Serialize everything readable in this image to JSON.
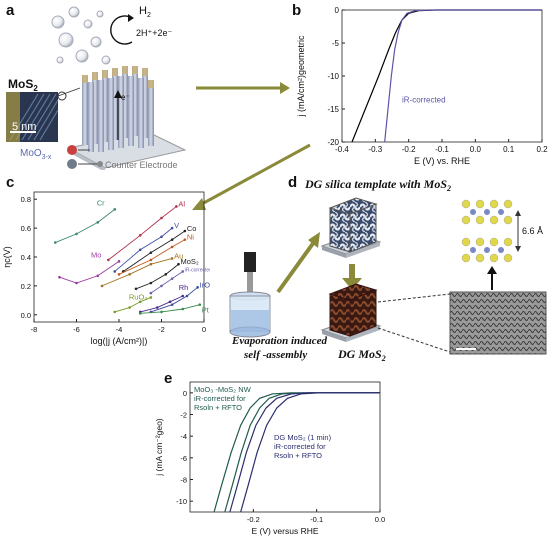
{
  "panels": {
    "a": {
      "letter": "a",
      "h2_label": "H",
      "h2_sub": "2",
      "reaction_label": "2H⁺+2e⁻",
      "mos2_label": "MoS",
      "mos2_sub": "2",
      "scale_label": "5 nm",
      "moo3_label": "MoO",
      "moo3_sub": "3-x",
      "electron_label": "e⁻",
      "minus_label": "⊖",
      "plus_label": "⊕",
      "counter_label": "Counter Electrode"
    },
    "b": {
      "letter": "b",
      "annotation": "iR-corrected"
    },
    "c": {
      "letter": "c"
    },
    "d": {
      "letter": "d",
      "title": "DG silica template with MoS",
      "title_sub": "2",
      "spacing_label": "6.6 Å",
      "self_assembly_line1": "Evaporation induced",
      "self_assembly_line2": "self -assembly",
      "dg_label": "DG MoS",
      "dg_sub": "2"
    },
    "e": {
      "letter": "e"
    }
  },
  "colors": {
    "arrow": "#8a8a3a",
    "navy": "#2b2d6e",
    "purple": "#6e5fb0",
    "teal": "#1f5a4f"
  },
  "chart_data": [
    {
      "panel": "b",
      "type": "line",
      "xlabel": "E (V) vs. RHE",
      "ylabel": "j (mA/cm²)geometric",
      "xlim": [
        -0.4,
        0.2
      ],
      "ylim": [
        -20,
        0
      ],
      "xticks": [
        "-0.4",
        "-0.3",
        "-0.2",
        "-0.1",
        "0.0",
        "0.1",
        "0.2"
      ],
      "yticks": [
        "0",
        "-5",
        "-10",
        "-15",
        "-20"
      ],
      "series": [
        {
          "color": "#000000",
          "x": [
            -0.37,
            -0.33,
            -0.29,
            -0.26,
            -0.24,
            -0.22,
            -0.2,
            -0.17,
            -0.12,
            0.2
          ],
          "y": [
            -20,
            -15,
            -10,
            -6,
            -3.5,
            -1.5,
            -0.5,
            -0.1,
            0,
            0
          ]
        },
        {
          "name": "iR-corrected",
          "color": "#5b54a8",
          "x": [
            -0.272,
            -0.262,
            -0.252,
            -0.242,
            -0.232,
            -0.22,
            -0.205,
            -0.18,
            -0.14,
            0.2
          ],
          "y": [
            -20,
            -15,
            -10,
            -6,
            -3.5,
            -1.5,
            -0.5,
            -0.1,
            0,
            0
          ]
        }
      ]
    },
    {
      "panel": "c",
      "type": "scatter",
      "xlabel": "log(|j (A/cm²)|)",
      "ylabel": "ηc(V)",
      "xlim": [
        -8,
        0
      ],
      "ylim": [
        -0.05,
        0.85
      ],
      "xticks": [
        "-8",
        "-6",
        "-4",
        "-2",
        "0"
      ],
      "yticks": [
        "0.0",
        "0.2",
        "0.4",
        "0.6",
        "0.8"
      ],
      "series": [
        {
          "name": "Cr",
          "color": "#3a8a6a",
          "x": [
            -7,
            -6,
            -5,
            -4.2
          ],
          "y": [
            0.5,
            0.56,
            0.64,
            0.73
          ]
        },
        {
          "name": "Al",
          "color": "#b0304a",
          "x": [
            -4.5,
            -3,
            -2,
            -1.3
          ],
          "y": [
            0.38,
            0.55,
            0.67,
            0.75
          ]
        },
        {
          "name": "Mo",
          "color": "#9a3aa0",
          "x": [
            -6.8,
            -6,
            -5,
            -4
          ],
          "y": [
            0.26,
            0.22,
            0.27,
            0.37
          ]
        },
        {
          "name": "V",
          "color": "#4050a0",
          "x": [
            -4.2,
            -3,
            -2,
            -1.5
          ],
          "y": [
            0.3,
            0.45,
            0.54,
            0.6
          ]
        },
        {
          "name": "Co",
          "color": "#222222",
          "x": [
            -3.8,
            -2.5,
            -1.5,
            -0.9
          ],
          "y": [
            0.3,
            0.43,
            0.52,
            0.58
          ]
        },
        {
          "name": "Ni",
          "color": "#c05a20",
          "x": [
            -4,
            -2.5,
            -1.5,
            -0.9
          ],
          "y": [
            0.28,
            0.38,
            0.47,
            0.52
          ]
        },
        {
          "name": "Au",
          "color": "#a07020",
          "x": [
            -4.8,
            -3.5,
            -2.5,
            -1.5
          ],
          "y": [
            0.2,
            0.28,
            0.35,
            0.39
          ]
        },
        {
          "name": "MoS2",
          "color": "#222222",
          "x": [
            -3.2,
            -2.5,
            -1.8,
            -1.2
          ],
          "y": [
            0.18,
            0.22,
            0.28,
            0.35
          ]
        },
        {
          "name": "iR-corrected",
          "color": "#6a64b0",
          "x": [
            -2.5,
            -2,
            -1.5,
            -1
          ],
          "y": [
            0.15,
            0.2,
            0.25,
            0.3
          ]
        },
        {
          "name": "RuO2",
          "color": "#7a9a2a",
          "x": [
            -4.2,
            -3.5,
            -3,
            -2.5
          ],
          "y": [
            0.02,
            0.05,
            0.09,
            0.12
          ]
        },
        {
          "name": "Rh",
          "color": "#4a2a8a",
          "x": [
            -3,
            -2.2,
            -1.6,
            -1
          ],
          "y": [
            0.02,
            0.05,
            0.09,
            0.13
          ]
        },
        {
          "name": "IrO2",
          "color": "#3a4aa0",
          "x": [
            -2.5,
            -1.5,
            -0.8,
            -0.3
          ],
          "y": [
            0.02,
            0.07,
            0.13,
            0.19
          ]
        },
        {
          "name": "Pt",
          "color": "#3a8a4a",
          "x": [
            -3,
            -2,
            -1,
            -0.2
          ],
          "y": [
            0.01,
            0.02,
            0.04,
            0.07
          ]
        }
      ]
    },
    {
      "panel": "e",
      "type": "line",
      "xlabel": "E (V) versus RHE",
      "ylabel": "j (mA cm⁻²geo)",
      "xlim": [
        -0.3,
        0.0
      ],
      "ylim": [
        -11,
        1
      ],
      "xticks": [
        "-0.2",
        "-0.1",
        "0.0"
      ],
      "yticks": [
        "0",
        "-2",
        "-4",
        "-6",
        "-8",
        "-10"
      ],
      "annotations": [
        {
          "lines": [
            "MoO₃ -MoS₂ NW",
            "iR-corrected for",
            "Rsoln + RFTO"
          ]
        },
        {
          "lines": [
            "DG MoS₂ (1 min)",
            "iR-corrected for",
            "Rsoln + RFTO"
          ]
        }
      ],
      "series": [
        {
          "color": "#1f5a4f",
          "x": [
            -0.262,
            -0.25,
            -0.235,
            -0.22,
            -0.205,
            -0.19,
            -0.17,
            -0.14,
            0.0
          ],
          "y": [
            -11,
            -8.5,
            -5.5,
            -3,
            -1.4,
            -0.5,
            -0.1,
            0,
            0
          ]
        },
        {
          "color": "#1f5a4f",
          "x": [
            -0.245,
            -0.233,
            -0.219,
            -0.205,
            -0.19,
            -0.175,
            -0.155,
            -0.12,
            0.0
          ],
          "y": [
            -11,
            -8.5,
            -5.5,
            -3,
            -1.4,
            -0.5,
            -0.1,
            0,
            0
          ]
        },
        {
          "color": "#2b2d6e",
          "x": [
            -0.237,
            -0.225,
            -0.211,
            -0.196,
            -0.18,
            -0.163,
            -0.14,
            -0.11,
            0.0
          ],
          "y": [
            -11,
            -8.5,
            -5.5,
            -3,
            -1.4,
            -0.5,
            -0.1,
            0,
            0
          ]
        },
        {
          "color": "#2b2d6e",
          "x": [
            -0.22,
            -0.208,
            -0.194,
            -0.179,
            -0.163,
            -0.146,
            -0.125,
            -0.095,
            0.0
          ],
          "y": [
            -11,
            -8.5,
            -5.5,
            -3,
            -1.4,
            -0.5,
            -0.1,
            0,
            0
          ]
        }
      ]
    }
  ]
}
